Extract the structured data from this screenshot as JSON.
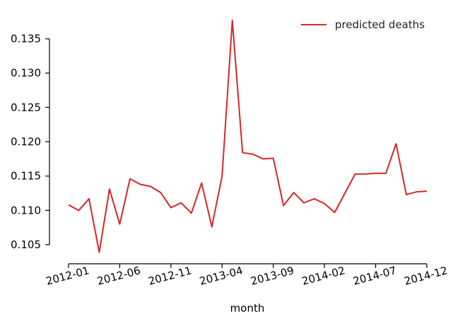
{
  "chart_data": {
    "type": "line",
    "xlabel": "month",
    "ylabel": "",
    "ylim": [
      0.105,
      0.135
    ],
    "yticks": [
      0.105,
      0.11,
      0.115,
      0.12,
      0.125,
      0.13,
      0.135
    ],
    "ytick_labels": [
      "0.105",
      "0.110",
      "0.115",
      "0.120",
      "0.125",
      "0.130",
      "0.135"
    ],
    "xticks": [
      "2012-01",
      "2012-06",
      "2012-11",
      "2013-04",
      "2013-09",
      "2014-02",
      "2014-07",
      "2014-12"
    ],
    "legend": {
      "placement": "top-right"
    },
    "grid": false,
    "x": [
      "2012-01",
      "2012-02",
      "2012-03",
      "2012-04",
      "2012-05",
      "2012-06",
      "2012-07",
      "2012-08",
      "2012-09",
      "2012-10",
      "2012-11",
      "2012-12",
      "2013-01",
      "2013-02",
      "2013-03",
      "2013-04",
      "2013-05",
      "2013-06",
      "2013-07",
      "2013-08",
      "2013-09",
      "2013-10",
      "2013-11",
      "2013-12",
      "2014-01",
      "2014-02",
      "2014-03",
      "2014-04",
      "2014-05",
      "2014-06",
      "2014-07",
      "2014-08",
      "2014-09",
      "2014-10",
      "2014-11",
      "2014-12"
    ],
    "series": [
      {
        "name": "predicted deaths",
        "color": "#d62728",
        "values": [
          0.1108,
          0.11,
          0.1117,
          0.1039,
          0.1131,
          0.108,
          0.1146,
          0.1138,
          0.1135,
          0.1126,
          0.1104,
          0.1111,
          0.1096,
          0.114,
          0.1076,
          0.115,
          0.1377,
          0.1184,
          0.1182,
          0.1175,
          0.1176,
          0.1107,
          0.1126,
          0.1111,
          0.1117,
          0.111,
          0.1097,
          0.1125,
          0.1153,
          0.1153,
          0.1154,
          0.1154,
          0.1197,
          0.1123,
          0.1127,
          0.1128
        ]
      }
    ]
  }
}
